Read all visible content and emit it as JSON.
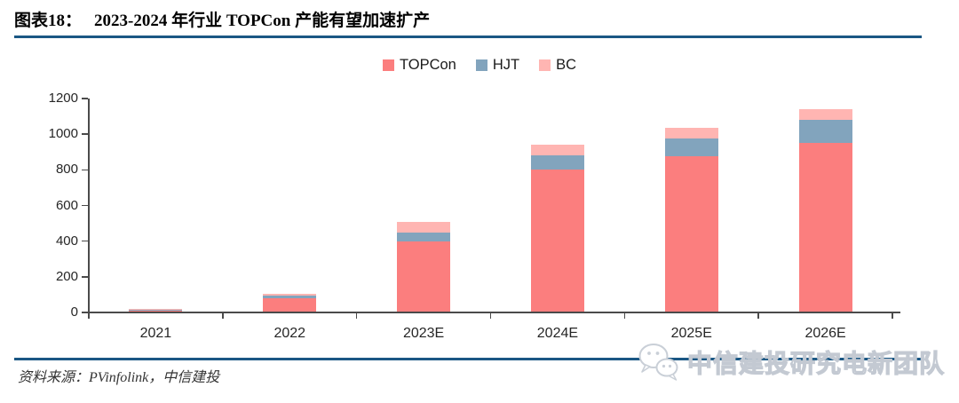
{
  "header": {
    "figure_label": "图表18：",
    "title": "2023-2024 年行业 TOPCon 产能有望加速扩产"
  },
  "chart_data": {
    "type": "bar",
    "stacked": true,
    "categories": [
      "2021",
      "2022",
      "2023E",
      "2024E",
      "2025E",
      "2026E"
    ],
    "series": [
      {
        "name": "TOPCon",
        "color": "#FB7E7E",
        "values": [
          12,
          80,
          400,
          800,
          875,
          950
        ]
      },
      {
        "name": "HJT",
        "color": "#82A4BD",
        "values": [
          5,
          15,
          50,
          80,
          100,
          130
        ]
      },
      {
        "name": "BC",
        "color": "#FFB5B2",
        "values": [
          3,
          10,
          60,
          60,
          60,
          60
        ]
      }
    ],
    "ylim": [
      0,
      1200
    ],
    "yticks": [
      0,
      200,
      400,
      600,
      800,
      1000,
      1200
    ],
    "legend_position": "top-center",
    "grid": false
  },
  "footer": {
    "source": "资料来源：PVinfolink，中信建投"
  },
  "watermark": {
    "text": "中信建投研究电新团队",
    "icon": "wechat-icon"
  },
  "colors": {
    "accent": "#1A5784",
    "axis": "#4A4A4A",
    "text": "#262626"
  }
}
